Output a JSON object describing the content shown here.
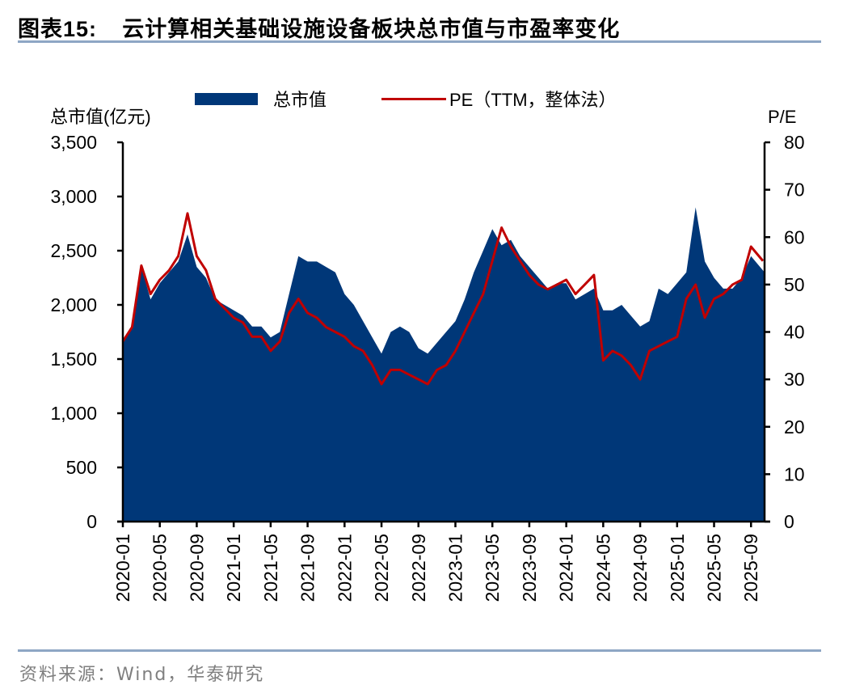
{
  "title": {
    "prefix": "图表15:",
    "text": "云计算相关基础设施设备板块总市值与市盈率变化"
  },
  "source": "资料来源：Wind，华泰研究",
  "colors": {
    "area": "#003778",
    "line": "#c00000",
    "rule": "#8ea6c4"
  },
  "chart_data": {
    "type": "area",
    "title": "云计算相关基础设施设备板块总市值与市盈率变化",
    "ylabel": "总市值(亿元)",
    "y2label": "P/E",
    "ylim": [
      0,
      3500
    ],
    "y2lim": [
      0,
      80
    ],
    "yticks": [
      "0",
      "500",
      "1,000",
      "1,500",
      "2,000",
      "2,500",
      "3,000",
      "3,500"
    ],
    "y2ticks": [
      "0",
      "10",
      "20",
      "30",
      "40",
      "50",
      "60",
      "70",
      "80"
    ],
    "xticks": [
      "2020-01",
      "2020-05",
      "2020-09",
      "2021-01",
      "2021-05",
      "2021-09",
      "2022-01",
      "2022-05",
      "2022-09",
      "2023-01",
      "2023-05",
      "2023-09",
      "2024-01",
      "2024-05",
      "2024-09",
      "2025-01",
      "2025-05",
      "2025-09"
    ],
    "grid": false,
    "legend": {
      "position": "top",
      "entries": [
        "总市值",
        "PE（TTM，整体法）"
      ]
    },
    "x": [
      "2020-01",
      "2020-02",
      "2020-03",
      "2020-04",
      "2020-05",
      "2020-06",
      "2020-07",
      "2020-08",
      "2020-09",
      "2020-10",
      "2020-11",
      "2020-12",
      "2021-01",
      "2021-02",
      "2021-03",
      "2021-04",
      "2021-05",
      "2021-06",
      "2021-07",
      "2021-08",
      "2021-09",
      "2021-10",
      "2021-11",
      "2021-12",
      "2022-01",
      "2022-02",
      "2022-03",
      "2022-04",
      "2022-05",
      "2022-06",
      "2022-07",
      "2022-08",
      "2022-09",
      "2022-10",
      "2022-11",
      "2022-12",
      "2023-01",
      "2023-02",
      "2023-03",
      "2023-04",
      "2023-05",
      "2023-06",
      "2023-07",
      "2023-08",
      "2023-09",
      "2023-10",
      "2023-11",
      "2023-12",
      "2024-01",
      "2024-02",
      "2024-03",
      "2024-04",
      "2024-05",
      "2024-06",
      "2024-07",
      "2024-08",
      "2024-09",
      "2024-10",
      "2024-11",
      "2024-12",
      "2025-01",
      "2025-02",
      "2025-03",
      "2025-04",
      "2025-05",
      "2025-06",
      "2025-07",
      "2025-08",
      "2025-09",
      "2025-10"
    ],
    "series": [
      {
        "name": "总市值",
        "axis": "left",
        "type": "area",
        "values": [
          1650,
          1800,
          2350,
          2050,
          2200,
          2300,
          2400,
          2650,
          2350,
          2250,
          2050,
          2000,
          1950,
          1900,
          1800,
          1800,
          1700,
          1750,
          2100,
          2450,
          2400,
          2400,
          2350,
          2300,
          2100,
          2000,
          1850,
          1700,
          1550,
          1750,
          1800,
          1750,
          1600,
          1550,
          1650,
          1750,
          1850,
          2050,
          2300,
          2500,
          2700,
          2550,
          2600,
          2450,
          2350,
          2250,
          2150,
          2200,
          2200,
          2050,
          2100,
          2150,
          1950,
          1950,
          2000,
          1900,
          1800,
          1850,
          2150,
          2100,
          2200,
          2300,
          2900,
          2400,
          2250,
          2150,
          2150,
          2250,
          2450,
          2300
        ]
      },
      {
        "name": "PE（TTM，整体法）",
        "axis": "right",
        "type": "line",
        "values": [
          38,
          41,
          54,
          48,
          51,
          53,
          56,
          65,
          56,
          53,
          47,
          45,
          43,
          42,
          39,
          39,
          36,
          38,
          44,
          47,
          44,
          43,
          41,
          40,
          39,
          37,
          36,
          33,
          29,
          32,
          32,
          31,
          30,
          29,
          32,
          33,
          36,
          40,
          44,
          48,
          55,
          62,
          58,
          55,
          52,
          50,
          49,
          50,
          51,
          48,
          50,
          52,
          34,
          36,
          35,
          33,
          30,
          36,
          37,
          38,
          39,
          47,
          50,
          43,
          47,
          48,
          50,
          51,
          58,
          55
        ]
      }
    ]
  }
}
